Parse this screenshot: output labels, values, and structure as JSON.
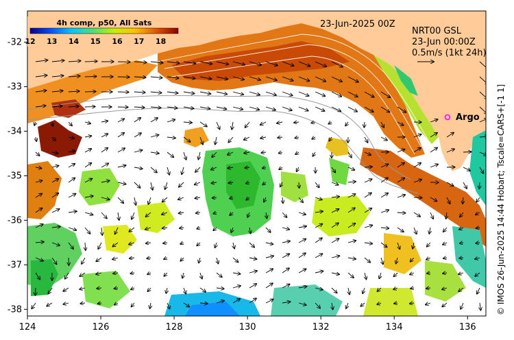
{
  "map": {
    "date_title": "23-Jun-2025 00Z",
    "product_name": "NRT00 GSL",
    "product_time": "23-Jun 00:00Z",
    "scale_arrow_label": "0.5m/s (1kt 24h)",
    "argo_label": "Argo",
    "side_credit": "© IMOS 26-Jun-2025 14:44 Hobart; Tscale=CARS+[-1 1]",
    "colorbar": {
      "title": "4h comp, p50, All Sats",
      "ticks": [
        "12",
        "13",
        "14",
        "15",
        "16",
        "17",
        "18"
      ],
      "range": [
        12,
        18.8
      ]
    },
    "x_ticks": [
      "124",
      "126",
      "128",
      "130",
      "132",
      "134",
      "136"
    ],
    "y_ticks": [
      "-32",
      "-33",
      "-34",
      "-35",
      "-36",
      "-37",
      "-38"
    ],
    "extent": {
      "lon": [
        124,
        136.5
      ],
      "lat": [
        -38.15,
        -31.3
      ]
    },
    "colors": {
      "land": "#ffcc99",
      "arrow": "#000000",
      "argo": "#ff00ff",
      "contour": "#999999"
    }
  }
}
